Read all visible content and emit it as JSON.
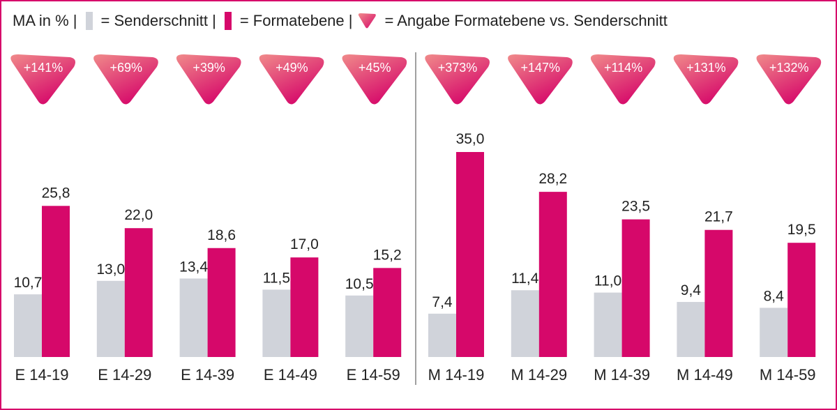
{
  "legend": {
    "prefix": "MA in % |",
    "series1": "= Senderschnitt |",
    "series2": "= Formatebene |",
    "badge": "= Angabe Formatebene vs. Senderschnitt"
  },
  "chart_data": {
    "type": "bar",
    "categories": [
      "E 14-19",
      "E 14-29",
      "E 14-39",
      "E 14-49",
      "E 14-59",
      "M 14-19",
      "M 14-29",
      "M 14-39",
      "M 14-49",
      "M 14-59"
    ],
    "series": [
      {
        "name": "Senderschnitt",
        "values": [
          10.7,
          13.0,
          13.4,
          11.5,
          10.5,
          7.4,
          11.4,
          11.0,
          9.4,
          8.4
        ],
        "labels": [
          "10,7",
          "13,0",
          "13,4",
          "11,5",
          "10,5",
          "7,4",
          "11,4",
          "11,0",
          "9,4",
          "8,4"
        ]
      },
      {
        "name": "Formatebene",
        "values": [
          25.8,
          22.0,
          18.6,
          17.0,
          15.2,
          35.0,
          28.2,
          23.5,
          21.7,
          19.5
        ],
        "labels": [
          "25,8",
          "22,0",
          "18,6",
          "17,0",
          "15,2",
          "35,0",
          "28,2",
          "23,5",
          "21,7",
          "19,5"
        ]
      }
    ],
    "badges": [
      "+141%",
      "+69%",
      "+39%",
      "+49%",
      "+45%",
      "+373%",
      "+147%",
      "+114%",
      "+131%",
      "+132%"
    ],
    "ylim": [
      0,
      35
    ],
    "grid": false,
    "colors": {
      "series1": "#d0d3da",
      "series2": "#d6086a",
      "badge_start": "#f08a8a",
      "badge_end": "#d6086a",
      "divider": "#a0a0a0"
    }
  }
}
